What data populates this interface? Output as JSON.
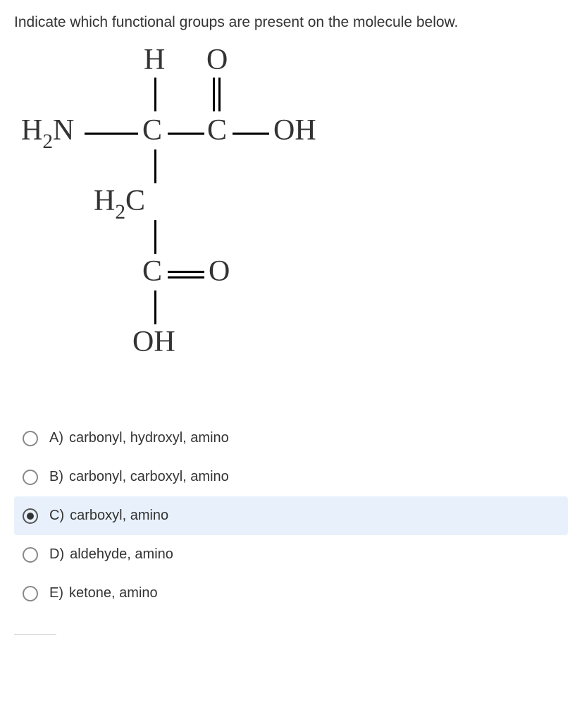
{
  "question_text": "Indicate which functional groups are present on the molecule below.",
  "molecule": {
    "H": "H",
    "O_top": "O",
    "H2N": "H",
    "H2N_sub": "2",
    "N": "N",
    "C1": "C",
    "C2": "C",
    "OH_right": "OH",
    "H2C": "H",
    "H2C_sub": "2",
    "H2C_C": "C",
    "C3": "C",
    "O_right": "O",
    "OH_bottom": "OH"
  },
  "options": [
    {
      "letter": "A)",
      "text": "carbonyl, hydroxyl, amino",
      "selected": false
    },
    {
      "letter": "B)",
      "text": "carbonyl, carboxyl, amino",
      "selected": false
    },
    {
      "letter": "C)",
      "text": "carboxyl, amino",
      "selected": true
    },
    {
      "letter": "D)",
      "text": "aldehyde, amino",
      "selected": false
    },
    {
      "letter": "E)",
      "text": "ketone, amino",
      "selected": false
    }
  ],
  "colors": {
    "text": "#333333",
    "selected_bg": "#e8f1fb",
    "background": "#ffffff"
  }
}
